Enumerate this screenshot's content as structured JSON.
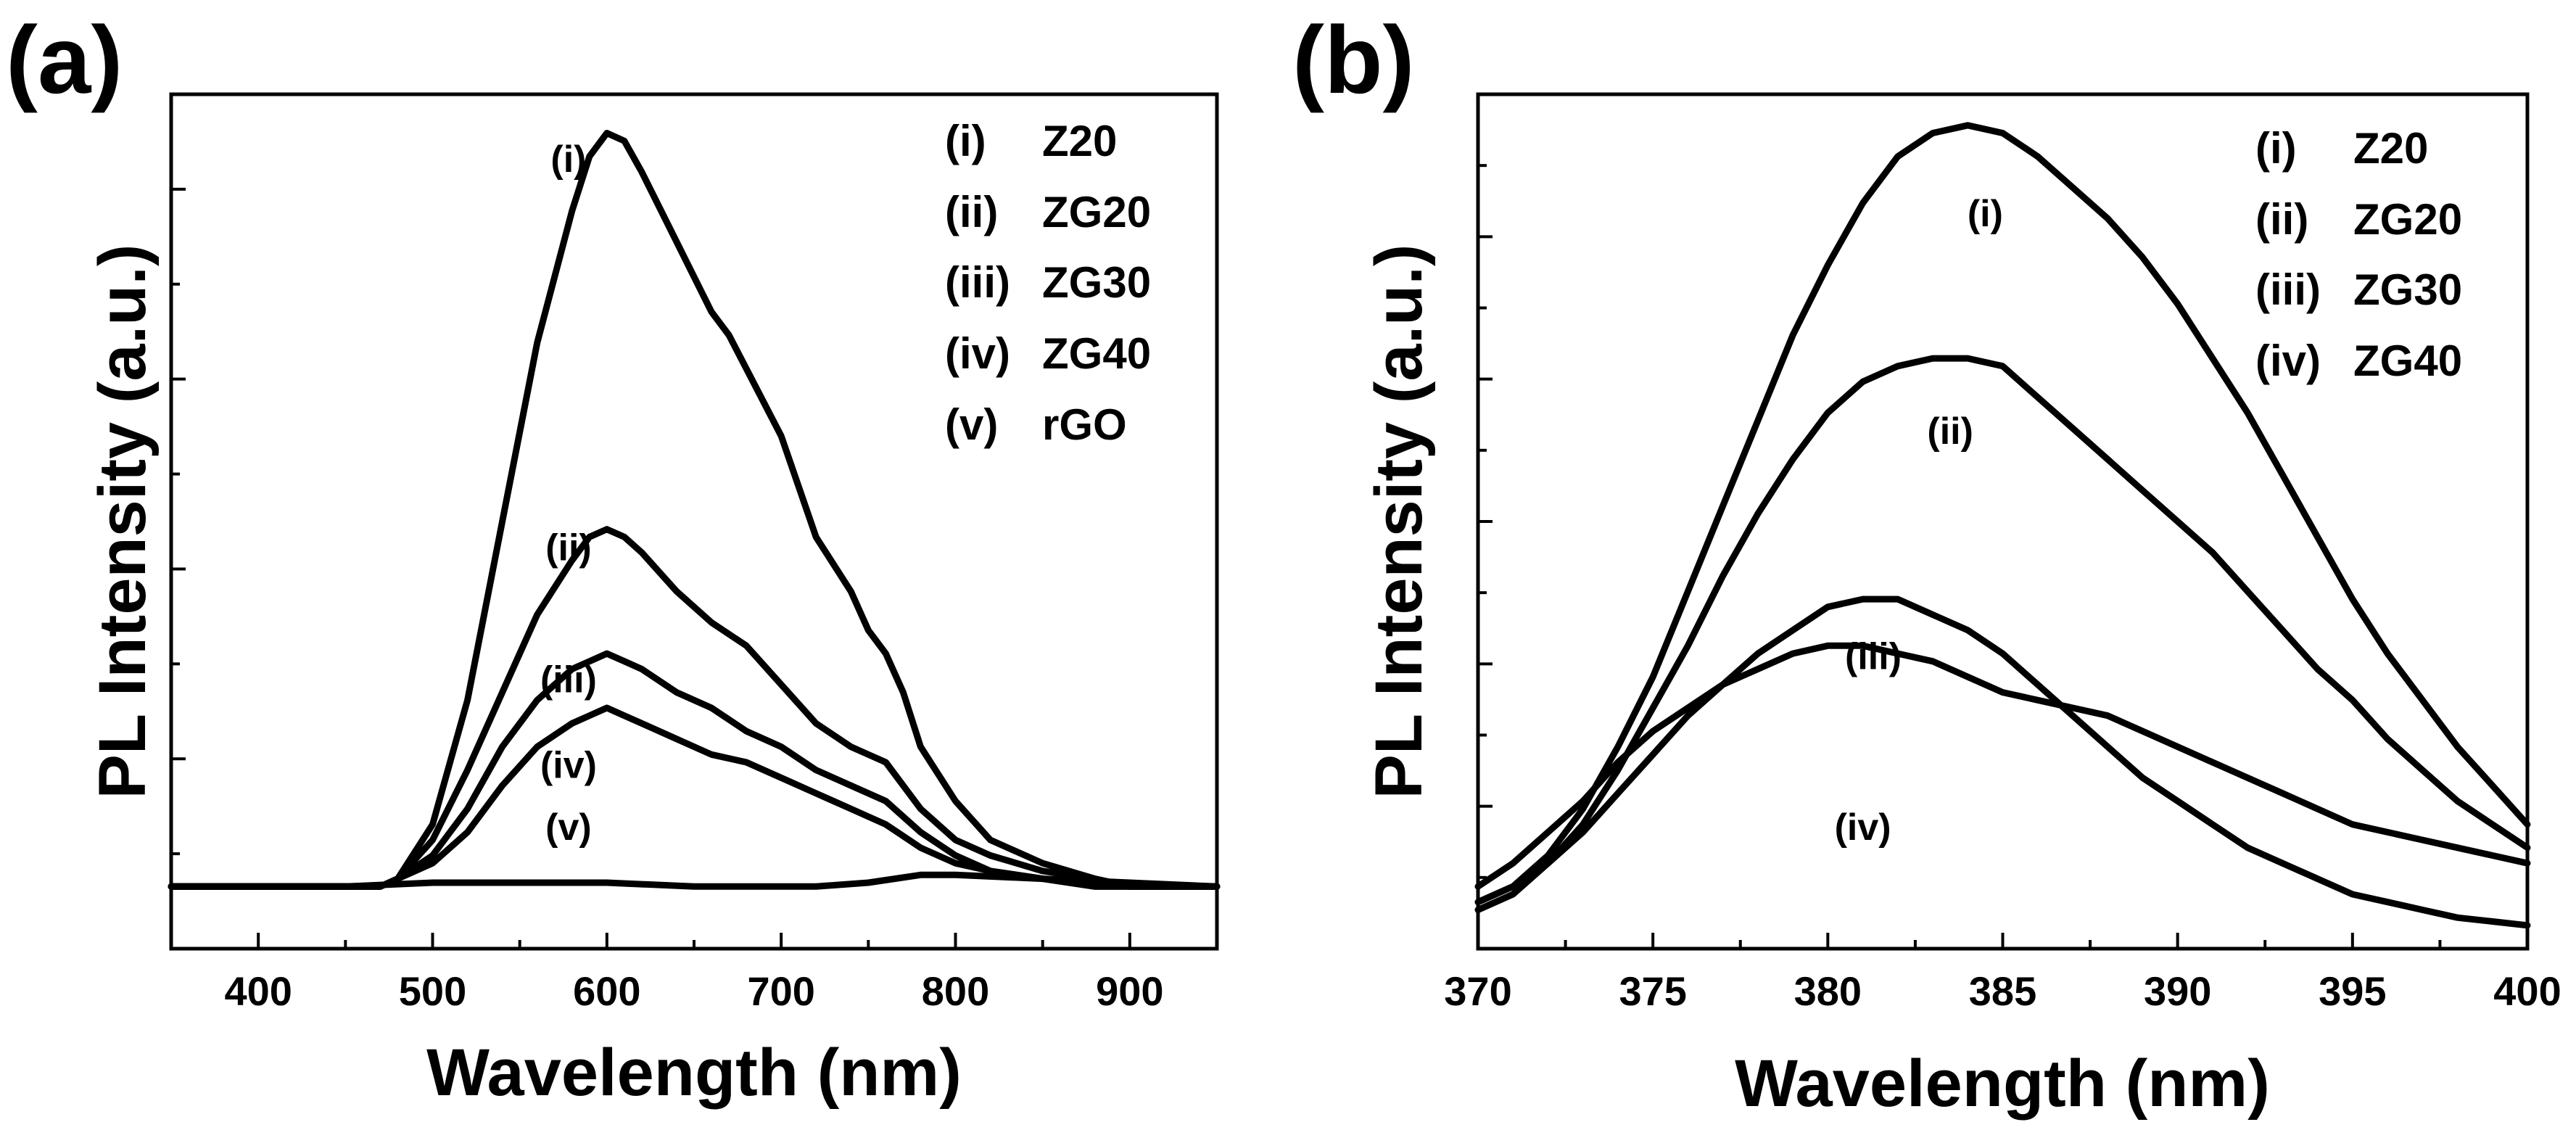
{
  "chart_data": [
    {
      "panel": "(a)",
      "type": "line",
      "xlabel": "Wavelength (nm)",
      "ylabel": "PL Intensity (a.u.)",
      "xlim": [
        350,
        950
      ],
      "ylim": [
        0,
        1.1
      ],
      "xticks": [
        400,
        500,
        600,
        700,
        800,
        900
      ],
      "x_tick_labels": [
        "400",
        "500",
        "600",
        "700",
        "800",
        "900"
      ],
      "y_tick_labels_shown": false,
      "legend_position": "top-right",
      "legend": [
        {
          "id": "(i)",
          "name": "Z20"
        },
        {
          "id": "(ii)",
          "name": "ZG20"
        },
        {
          "id": "(iii)",
          "name": "ZG30"
        },
        {
          "id": "(iv)",
          "name": "ZG40"
        },
        {
          "id": "(v)",
          "name": "rGO"
        }
      ],
      "series": [
        {
          "name": "(i) Z20",
          "label": "(i)",
          "label_at": [
            578,
            1.0
          ],
          "x": [
            350,
            400,
            450,
            470,
            480,
            500,
            520,
            540,
            560,
            580,
            590,
            600,
            610,
            620,
            640,
            660,
            670,
            700,
            720,
            740,
            750,
            760,
            770,
            780,
            800,
            820,
            850,
            880,
            900,
            950
          ],
          "y": [
            0.08,
            0.08,
            0.08,
            0.08,
            0.09,
            0.16,
            0.32,
            0.55,
            0.78,
            0.95,
            1.02,
            1.05,
            1.04,
            1.0,
            0.91,
            0.82,
            0.79,
            0.66,
            0.53,
            0.46,
            0.41,
            0.38,
            0.33,
            0.26,
            0.19,
            0.14,
            0.11,
            0.09,
            0.08,
            0.08
          ]
        },
        {
          "name": "(ii) ZG20",
          "label": "(ii)",
          "label_at": [
            578,
            0.5
          ],
          "x": [
            350,
            400,
            450,
            470,
            480,
            500,
            520,
            540,
            560,
            580,
            590,
            600,
            610,
            620,
            640,
            660,
            680,
            700,
            720,
            740,
            750,
            760,
            770,
            780,
            800,
            820,
            850,
            880,
            900,
            950
          ],
          "y": [
            0.08,
            0.08,
            0.08,
            0.08,
            0.09,
            0.14,
            0.23,
            0.33,
            0.43,
            0.5,
            0.53,
            0.54,
            0.53,
            0.51,
            0.46,
            0.42,
            0.39,
            0.34,
            0.29,
            0.26,
            0.25,
            0.24,
            0.21,
            0.18,
            0.14,
            0.12,
            0.1,
            0.09,
            0.08,
            0.08
          ]
        },
        {
          "name": "(iii) ZG30",
          "label": "(iii)",
          "label_at": [
            578,
            0.33
          ],
          "x": [
            350,
            400,
            450,
            470,
            480,
            500,
            520,
            540,
            560,
            580,
            590,
            600,
            610,
            620,
            640,
            660,
            680,
            700,
            720,
            740,
            760,
            780,
            800,
            820,
            850,
            880,
            900,
            950
          ],
          "y": [
            0.08,
            0.08,
            0.08,
            0.08,
            0.09,
            0.12,
            0.18,
            0.26,
            0.32,
            0.36,
            0.37,
            0.38,
            0.37,
            0.36,
            0.33,
            0.31,
            0.28,
            0.26,
            0.23,
            0.21,
            0.19,
            0.15,
            0.12,
            0.1,
            0.09,
            0.08,
            0.08,
            0.08
          ]
        },
        {
          "name": "(iv) ZG40",
          "label": "(iv)",
          "label_at": [
            578,
            0.22
          ],
          "x": [
            350,
            400,
            450,
            470,
            480,
            500,
            520,
            540,
            560,
            580,
            590,
            600,
            610,
            620,
            640,
            660,
            680,
            700,
            720,
            740,
            760,
            780,
            800,
            820,
            850,
            880,
            900,
            950
          ],
          "y": [
            0.08,
            0.08,
            0.08,
            0.08,
            0.09,
            0.11,
            0.15,
            0.21,
            0.26,
            0.29,
            0.3,
            0.31,
            0.3,
            0.29,
            0.27,
            0.25,
            0.24,
            0.22,
            0.2,
            0.18,
            0.16,
            0.13,
            0.11,
            0.1,
            0.09,
            0.08,
            0.08,
            0.08
          ]
        },
        {
          "name": "(v) rGO",
          "label": "(v)",
          "label_at": [
            578,
            0.14
          ],
          "x": [
            350,
            400,
            450,
            500,
            550,
            600,
            650,
            700,
            720,
            750,
            780,
            800,
            850,
            900,
            950
          ],
          "y": [
            0.08,
            0.08,
            0.08,
            0.085,
            0.085,
            0.085,
            0.08,
            0.08,
            0.08,
            0.085,
            0.095,
            0.095,
            0.09,
            0.085,
            0.08
          ]
        }
      ]
    },
    {
      "panel": "(b)",
      "type": "line",
      "xlabel": "Wavelength (nm)",
      "ylabel": "PL Intensity (a.u.)",
      "xlim": [
        370,
        400
      ],
      "ylim": [
        0,
        1.1
      ],
      "xticks": [
        370,
        375,
        380,
        385,
        390,
        395,
        400
      ],
      "x_tick_labels": [
        "370",
        "375",
        "380",
        "385",
        "390",
        "395",
        "400"
      ],
      "y_tick_labels_shown": false,
      "legend_position": "top-right",
      "legend": [
        {
          "id": "(i)",
          "name": "Z20"
        },
        {
          "id": "(ii)",
          "name": "ZG20"
        },
        {
          "id": "(iii)",
          "name": "ZG30"
        },
        {
          "id": "(iv)",
          "name": "ZG40"
        }
      ],
      "series": [
        {
          "name": "(i) Z20",
          "label": "(i)",
          "label_at": [
            384.5,
            0.93
          ],
          "x": [
            370,
            371,
            372,
            373,
            374,
            375,
            376,
            377,
            378,
            379,
            380,
            381,
            382,
            383,
            384,
            385,
            386,
            387,
            388,
            389,
            390,
            391,
            392,
            393,
            394,
            395,
            396,
            397,
            398,
            399,
            400
          ],
          "y": [
            0.06,
            0.08,
            0.12,
            0.18,
            0.26,
            0.35,
            0.46,
            0.57,
            0.68,
            0.79,
            0.88,
            0.96,
            1.02,
            1.05,
            1.06,
            1.05,
            1.02,
            0.98,
            0.94,
            0.89,
            0.83,
            0.76,
            0.69,
            0.61,
            0.53,
            0.45,
            0.38,
            0.32,
            0.26,
            0.21,
            0.16
          ]
        },
        {
          "name": "(ii) ZG20",
          "label": "(ii)",
          "label_at": [
            383.5,
            0.65
          ],
          "x": [
            370,
            371,
            372,
            373,
            374,
            375,
            376,
            377,
            378,
            379,
            380,
            381,
            382,
            383,
            384,
            385,
            386,
            387,
            388,
            389,
            390,
            391,
            392,
            393,
            394,
            395,
            396,
            397,
            398,
            399,
            400
          ],
          "y": [
            0.05,
            0.07,
            0.11,
            0.16,
            0.23,
            0.31,
            0.39,
            0.48,
            0.56,
            0.63,
            0.69,
            0.73,
            0.75,
            0.76,
            0.76,
            0.75,
            0.71,
            0.67,
            0.63,
            0.59,
            0.55,
            0.51,
            0.46,
            0.41,
            0.36,
            0.32,
            0.27,
            0.23,
            0.19,
            0.16,
            0.13
          ]
        },
        {
          "name": "(iii) ZG30",
          "label": "(iii)",
          "label_at": [
            381.3,
            0.36
          ],
          "x": [
            370,
            371,
            372,
            373,
            374,
            375,
            376,
            377,
            378,
            379,
            380,
            381,
            382,
            383,
            384,
            385,
            386,
            387,
            388,
            389,
            390,
            391,
            392,
            393,
            394,
            395,
            396,
            397,
            398,
            399,
            400
          ],
          "y": [
            0.06,
            0.08,
            0.11,
            0.15,
            0.2,
            0.25,
            0.3,
            0.34,
            0.38,
            0.41,
            0.44,
            0.45,
            0.45,
            0.43,
            0.41,
            0.38,
            0.34,
            0.3,
            0.26,
            0.22,
            0.19,
            0.16,
            0.13,
            0.11,
            0.09,
            0.07,
            0.06,
            0.05,
            0.04,
            0.035,
            0.03
          ]
        },
        {
          "name": "(iv) ZG40",
          "label": "(iv)",
          "label_at": [
            381.0,
            0.14
          ],
          "x": [
            370,
            371,
            372,
            373,
            374,
            375,
            376,
            377,
            378,
            379,
            380,
            381,
            382,
            383,
            384,
            385,
            386,
            387,
            388,
            389,
            390,
            391,
            392,
            393,
            394,
            395,
            396,
            397,
            398,
            399,
            400
          ],
          "y": [
            0.08,
            0.11,
            0.15,
            0.19,
            0.24,
            0.28,
            0.31,
            0.34,
            0.36,
            0.38,
            0.39,
            0.39,
            0.38,
            0.37,
            0.35,
            0.33,
            0.32,
            0.31,
            0.3,
            0.28,
            0.26,
            0.24,
            0.22,
            0.2,
            0.18,
            0.16,
            0.15,
            0.14,
            0.13,
            0.12,
            0.11
          ]
        }
      ]
    }
  ]
}
